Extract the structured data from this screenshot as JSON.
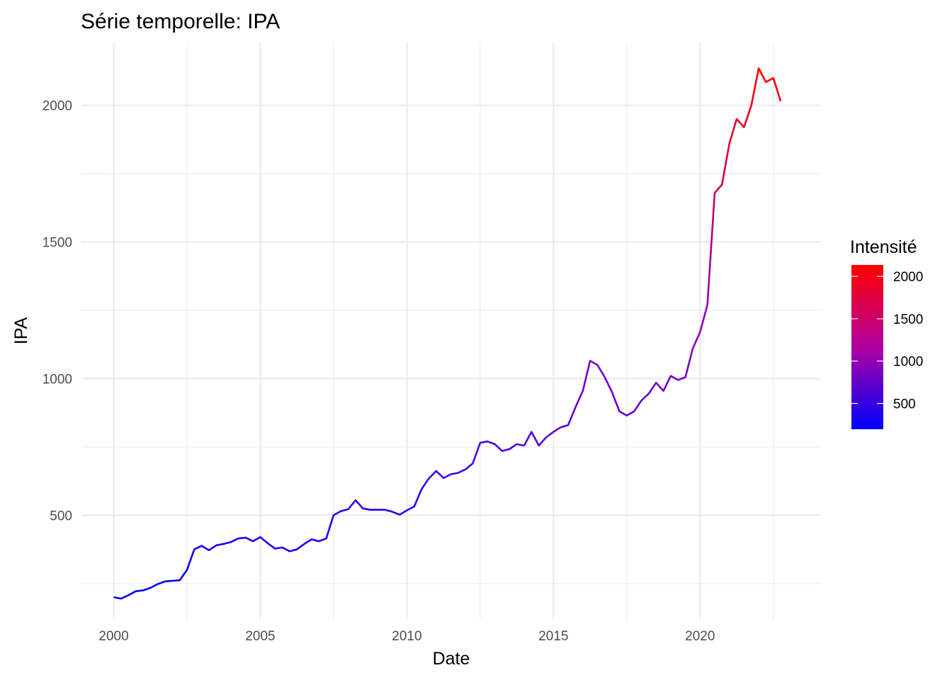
{
  "chart_data": {
    "type": "line",
    "title": "Série temporelle:  IPA",
    "xlabel": "Date",
    "ylabel": "IPA",
    "x_ticks": [
      "2000",
      "2005",
      "2010",
      "2015",
      "2020"
    ],
    "y_ticks": [
      "500",
      "1000",
      "1500",
      "2000"
    ],
    "xlim": [
      1998.9,
      2024.1
    ],
    "ylim": [
      120,
      2230
    ],
    "grid": true,
    "legend": {
      "title": "Intensité",
      "position": "right",
      "type": "colorbar",
      "labels": [
        "500",
        "1000",
        "1500",
        "2000"
      ],
      "range": [
        195,
        2135
      ],
      "colors": {
        "low": "#0000ff",
        "high": "#ff0000"
      }
    },
    "series": [
      {
        "x": [
          2000.0,
          2000.25,
          2000.5,
          2000.75,
          2001.0,
          2001.25,
          2001.5,
          2001.75,
          2002.0,
          2002.25,
          2002.5,
          2002.75,
          2003.0,
          2003.25,
          2003.5,
          2003.75,
          2004.0,
          2004.25,
          2004.5,
          2004.75,
          2005.0,
          2005.25,
          2005.5,
          2005.75,
          2006.0,
          2006.25,
          2006.5,
          2006.75,
          2007.0,
          2007.25,
          2007.5,
          2007.75,
          2008.0,
          2008.25,
          2008.5,
          2008.75,
          2009.0,
          2009.25,
          2009.5,
          2009.75,
          2010.0,
          2010.25,
          2010.5,
          2010.75,
          2011.0,
          2011.25,
          2011.5,
          2011.75,
          2012.0,
          2012.25,
          2012.5,
          2012.75,
          2013.0,
          2013.25,
          2013.5,
          2013.75,
          2014.0,
          2014.25,
          2014.5,
          2014.75,
          2015.0,
          2015.25,
          2015.5,
          2015.75,
          2016.0,
          2016.25,
          2016.5,
          2016.75,
          2017.0,
          2017.25,
          2017.5,
          2017.75,
          2018.0,
          2018.25,
          2018.5,
          2018.75,
          2019.0,
          2019.25,
          2019.5,
          2019.75,
          2020.0,
          2020.25,
          2020.5,
          2020.75,
          2021.0,
          2021.25,
          2021.5,
          2021.75,
          2022.0,
          2022.25,
          2022.5,
          2022.75
        ],
        "y": [
          200,
          195,
          207,
          222,
          225,
          234,
          248,
          258,
          260,
          262,
          300,
          375,
          388,
          372,
          390,
          395,
          402,
          415,
          418,
          405,
          420,
          398,
          378,
          382,
          368,
          375,
          395,
          412,
          405,
          415,
          500,
          515,
          522,
          555,
          525,
          520,
          520,
          520,
          513,
          502,
          518,
          532,
          595,
          635,
          662,
          636,
          650,
          655,
          668,
          690,
          765,
          770,
          760,
          735,
          742,
          760,
          755,
          805,
          755,
          785,
          805,
          822,
          830,
          895,
          955,
          1065,
          1050,
          1005,
          950,
          880,
          865,
          880,
          920,
          945,
          985,
          955,
          1010,
          995,
          1005,
          1110,
          1170,
          1270,
          1680,
          1710,
          1860,
          1950,
          1920,
          2000,
          2135,
          2085,
          2100,
          2015
        ],
        "color_range": [
          "#0000ff",
          "#ff0000"
        ]
      }
    ]
  }
}
